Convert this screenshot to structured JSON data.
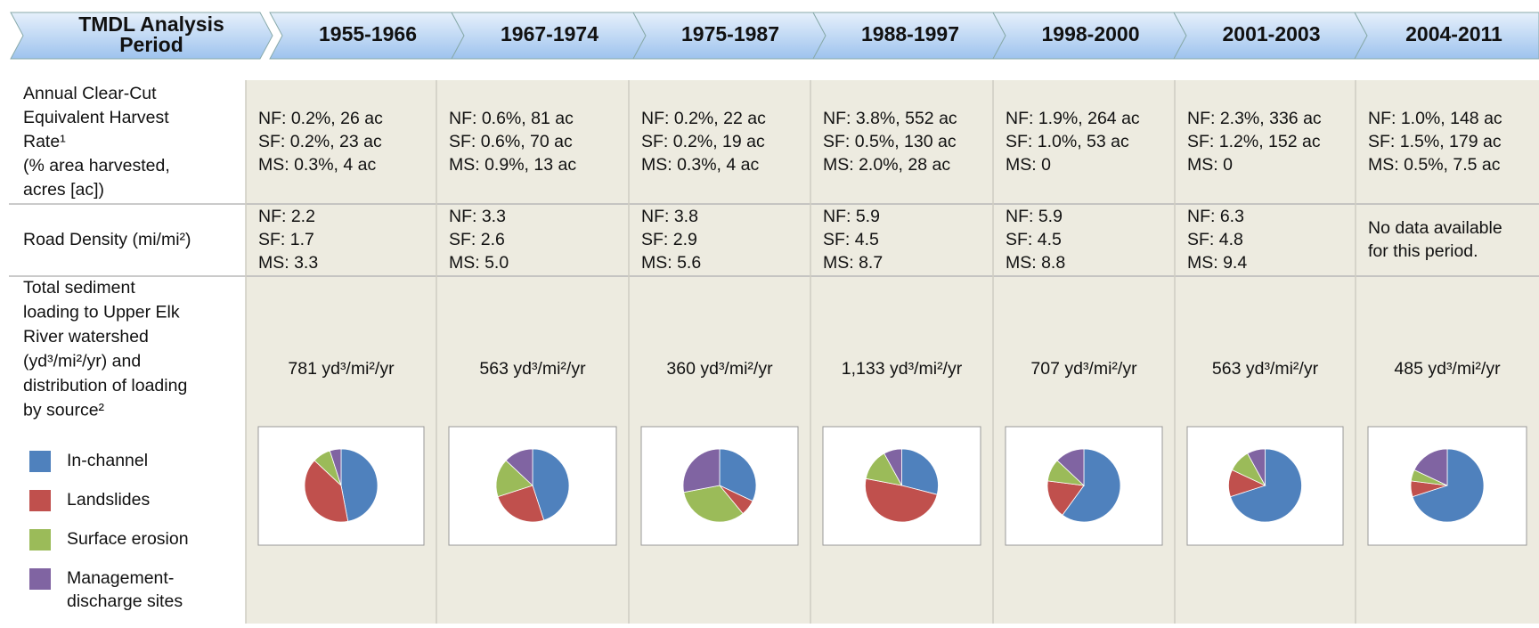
{
  "header": {
    "first": [
      "TMDL Analysis",
      "Period"
    ],
    "periods": [
      "1955-1966",
      "1967-1974",
      "1975-1987",
      "1988-1997",
      "1998-2000",
      "2001-2003",
      "2004-2011"
    ]
  },
  "row_labels": {
    "harvest": [
      "Annual Clear-Cut",
      "Equivalent Harvest",
      "Rate¹",
      "(% area harvested,",
      "acres [ac])"
    ],
    "road": [
      "Road Density (mi/mi²)"
    ],
    "sediment": [
      "Total sediment",
      "loading to Upper Elk",
      "River watershed",
      "(yd³/mi²/yr) and",
      "distribution of loading",
      "by source²"
    ]
  },
  "legend": [
    {
      "lines": [
        "In-channel"
      ],
      "color": "#4f81bd"
    },
    {
      "lines": [
        "Landslides"
      ],
      "color": "#c0504d"
    },
    {
      "lines": [
        "Surface erosion"
      ],
      "color": "#9bbb59"
    },
    {
      "lines": [
        "Management-",
        "discharge sites"
      ],
      "color": "#8064a2"
    }
  ],
  "columns": [
    {
      "harvest": [
        "NF: 0.2%, 26 ac",
        "SF: 0.2%, 23 ac",
        "MS: 0.3%, 4 ac"
      ],
      "road": [
        "NF: 2.2",
        "SF: 1.7",
        "MS: 3.3"
      ],
      "sediment": "781 yd³/mi²/yr",
      "pie": [
        47,
        40,
        8,
        5
      ]
    },
    {
      "harvest": [
        "NF: 0.6%, 81 ac",
        "SF: 0.6%, 70 ac",
        "MS: 0.9%, 13 ac"
      ],
      "road": [
        "NF: 3.3",
        "SF: 2.6",
        "MS: 5.0"
      ],
      "sediment": "563 yd³/mi²/yr",
      "pie": [
        45,
        25,
        17,
        13
      ]
    },
    {
      "harvest": [
        "NF: 0.2%, 22 ac",
        "SF: 0.2%, 19 ac",
        "MS: 0.3%, 4 ac"
      ],
      "road": [
        "NF: 3.8",
        "SF: 2.9",
        "MS: 5.6"
      ],
      "sediment": "360 yd³/mi²/yr",
      "pie": [
        32,
        7,
        33,
        28
      ]
    },
    {
      "harvest": [
        "NF: 3.8%, 552 ac",
        "SF: 0.5%, 130 ac",
        "MS: 2.0%, 28 ac"
      ],
      "road": [
        "NF: 5.9",
        "SF: 4.5",
        "MS: 8.7"
      ],
      "sediment": "1,133 yd³/mi²/yr",
      "pie": [
        29,
        49,
        14,
        8
      ]
    },
    {
      "harvest": [
        "NF: 1.9%, 264 ac",
        "SF: 1.0%, 53 ac",
        "MS: 0"
      ],
      "road": [
        "NF: 5.9",
        "SF: 4.5",
        "MS: 8.8"
      ],
      "sediment": "707 yd³/mi²/yr",
      "pie": [
        60,
        17,
        10,
        13
      ]
    },
    {
      "harvest": [
        "NF: 2.3%, 336 ac",
        "SF: 1.2%, 152 ac",
        "MS: 0"
      ],
      "road": [
        "NF: 6.3",
        "SF: 4.8",
        "MS: 9.4"
      ],
      "sediment": "563 yd³/mi²/yr",
      "pie": [
        70,
        12,
        10,
        8
      ]
    },
    {
      "harvest": [
        "NF: 1.0%, 148 ac",
        "SF: 1.5%, 179 ac",
        "MS: 0.5%, 7.5 ac"
      ],
      "road": [
        "No data available",
        "for this period."
      ],
      "sediment": "485 yd³/mi²/yr",
      "pie": [
        70,
        7,
        5,
        18
      ]
    }
  ]
}
